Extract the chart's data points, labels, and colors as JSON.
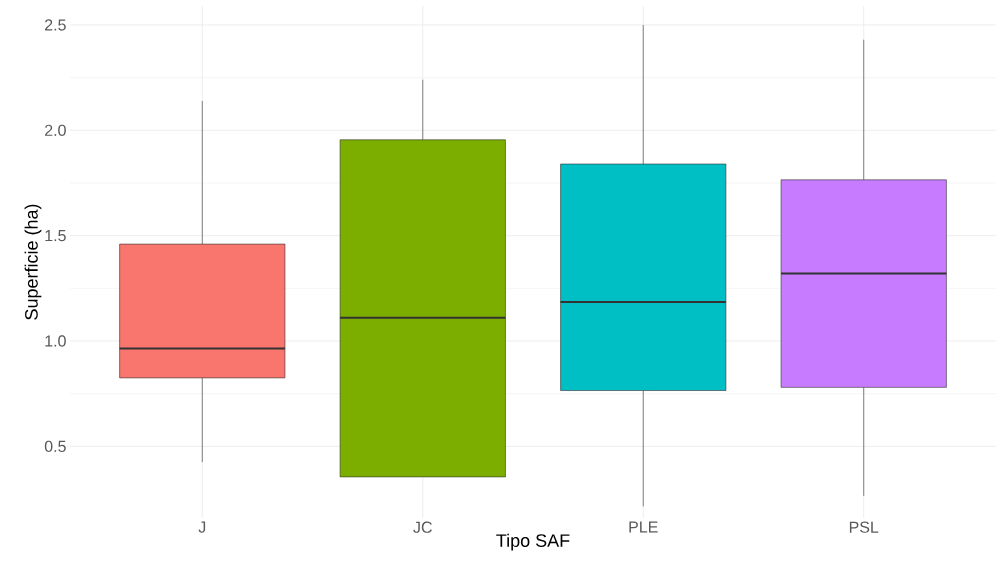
{
  "chart_data": {
    "type": "box",
    "xlabel": "Tipo SAF",
    "ylabel": "Superficie (ha)",
    "categories": [
      "J",
      "JC",
      "PLE",
      "PSL"
    ],
    "colors": [
      "#f8766d",
      "#7cae00",
      "#00bfc4",
      "#c77cff"
    ],
    "boxes": [
      {
        "low": 0.425,
        "q1": 0.825,
        "median": 0.965,
        "q3": 1.46,
        "high": 2.14
      },
      {
        "low": 0.355,
        "q1": 0.355,
        "median": 1.11,
        "q3": 1.955,
        "high": 2.24
      },
      {
        "low": 0.215,
        "q1": 0.765,
        "median": 1.185,
        "q3": 1.84,
        "high": 2.5
      },
      {
        "low": 0.265,
        "q1": 0.78,
        "median": 1.32,
        "q3": 1.765,
        "high": 2.43
      }
    ],
    "ylim": [
      0.16,
      2.59
    ],
    "yticks": [
      0.5,
      {
        "value": 1.0,
        "label": "1.0"
      },
      1.5,
      {
        "value": 2.0,
        "label": "2.0"
      },
      2.5
    ],
    "grid": true
  }
}
